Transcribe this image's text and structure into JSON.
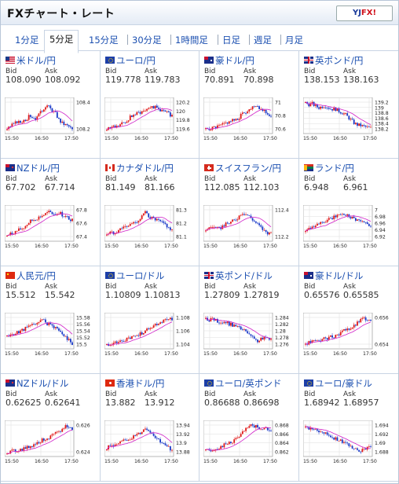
{
  "app": {
    "title": "FXチャート・レート",
    "logo": {
      "part1": "YJ",
      "part2": "FX!"
    }
  },
  "colors": {
    "link": "#1b4fb0",
    "up": "#e01818",
    "down": "#1838c8",
    "ma": "#d020c8",
    "grid": "#dddddd"
  },
  "tabs": [
    {
      "label": "1分足",
      "active": false
    },
    {
      "label": "5分足",
      "active": true
    },
    {
      "label": "15分足",
      "active": false
    },
    {
      "label": "30分足",
      "active": false
    },
    {
      "label": "1時間足",
      "active": false
    },
    {
      "label": "日足",
      "active": false
    },
    {
      "label": "週足",
      "active": false
    },
    {
      "label": "月足",
      "active": false
    }
  ],
  "labels": {
    "bid": "Bid",
    "ask": "Ask"
  },
  "pairs": [
    {
      "name": "米ドル/円",
      "flag": "us",
      "bid": "108.090",
      "ask": "108.092",
      "yticks": [
        "108.4",
        "108.2"
      ],
      "x": [
        "15:50",
        "16:50",
        "17:50"
      ],
      "profile": [
        0.1,
        0.15,
        0.22,
        0.3,
        0.28,
        0.35,
        0.4,
        0.5,
        0.45,
        0.4,
        0.55,
        0.7,
        0.85,
        0.75,
        0.65,
        0.55,
        0.35,
        0.25,
        0.2,
        0.15,
        0.05
      ]
    },
    {
      "name": "ユーロ/円",
      "flag": "eu",
      "bid": "119.778",
      "ask": "119.783",
      "yticks": [
        "120.2",
        "120",
        "119.8",
        "119.6"
      ],
      "x": [
        "15:50",
        "16:50",
        "17:50"
      ],
      "profile": [
        0.1,
        0.12,
        0.15,
        0.14,
        0.2,
        0.25,
        0.3,
        0.45,
        0.5,
        0.55,
        0.6,
        0.65,
        0.7,
        0.8,
        0.78,
        0.75,
        0.7,
        0.65,
        0.6,
        0.55,
        0.5
      ]
    },
    {
      "name": "豪ドル/円",
      "flag": "au",
      "bid": "70.891",
      "ask": "70.898",
      "yticks": [
        "71",
        "70.8",
        "70.6"
      ],
      "x": [
        "15:50",
        "16:50",
        "17:50"
      ],
      "profile": [
        0.05,
        0.08,
        0.1,
        0.12,
        0.15,
        0.2,
        0.25,
        0.3,
        0.35,
        0.32,
        0.4,
        0.55,
        0.6,
        0.65,
        0.75,
        0.85,
        0.8,
        0.7,
        0.65,
        0.55,
        0.45
      ]
    },
    {
      "name": "英ポンド/円",
      "flag": "gb",
      "bid": "138.153",
      "ask": "138.163",
      "yticks": [
        "139.2",
        "139",
        "138.8",
        "138.6",
        "138.4",
        "138.2"
      ],
      "x": [
        "15:50",
        "16:50",
        "17:50"
      ],
      "profile": [
        0.9,
        0.85,
        0.88,
        0.8,
        0.75,
        0.78,
        0.82,
        0.75,
        0.7,
        0.72,
        0.65,
        0.6,
        0.55,
        0.45,
        0.35,
        0.25,
        0.2,
        0.18,
        0.15,
        0.12,
        0.1
      ]
    },
    {
      "name": "NZドル/円",
      "flag": "nz",
      "bid": "67.702",
      "ask": "67.714",
      "yticks": [
        "67.8",
        "67.6",
        "67.4"
      ],
      "x": [
        "15:50",
        "16:50",
        "17:50"
      ],
      "profile": [
        0.1,
        0.15,
        0.2,
        0.25,
        0.3,
        0.35,
        0.45,
        0.55,
        0.6,
        0.65,
        0.7,
        0.75,
        0.8,
        0.85,
        0.8,
        0.78,
        0.85,
        0.75,
        0.7,
        0.65,
        0.6
      ]
    },
    {
      "name": "カナダドル/円",
      "flag": "ca",
      "bid": "81.149",
      "ask": "81.166",
      "yticks": [
        "81.3",
        "81.2",
        "81.1"
      ],
      "x": [
        "15:50",
        "16:50",
        "17:50"
      ],
      "profile": [
        0.15,
        0.2,
        0.18,
        0.25,
        0.3,
        0.4,
        0.35,
        0.45,
        0.5,
        0.55,
        0.6,
        0.75,
        0.85,
        0.7,
        0.65,
        0.6,
        0.55,
        0.5,
        0.45,
        0.35,
        0.25
      ]
    },
    {
      "name": "スイスフラン/円",
      "flag": "ch",
      "bid": "112.085",
      "ask": "112.103",
      "yticks": [
        "112.4",
        "112.2"
      ],
      "x": [
        "15:50",
        "16:50",
        "17:50"
      ],
      "profile": [
        0.3,
        0.35,
        0.4,
        0.35,
        0.3,
        0.4,
        0.45,
        0.5,
        0.55,
        0.6,
        0.7,
        0.85,
        0.8,
        0.75,
        0.65,
        0.55,
        0.45,
        0.35,
        0.25,
        0.2,
        0.15
      ]
    },
    {
      "name": "ランド/円",
      "flag": "za",
      "bid": "6.948",
      "ask": "6.961",
      "yticks": [
        "7",
        "6.98",
        "6.96",
        "6.94",
        "6.92"
      ],
      "x": [
        "15:50",
        "16:50",
        "17:50"
      ],
      "profile": [
        0.3,
        0.35,
        0.4,
        0.45,
        0.5,
        0.48,
        0.55,
        0.6,
        0.65,
        0.7,
        0.75,
        0.8,
        0.78,
        0.75,
        0.7,
        0.65,
        0.6,
        0.55,
        0.5,
        0.48,
        0.45
      ]
    },
    {
      "name": "人民元/円",
      "flag": "cn",
      "bid": "15.512",
      "ask": "15.542",
      "yticks": [
        "15.58",
        "15.56",
        "15.54",
        "15.52",
        "15.5"
      ],
      "x": [
        "15:50",
        "16:50",
        "17:50"
      ],
      "profile": [
        0.3,
        0.4,
        0.35,
        0.45,
        0.5,
        0.55,
        0.6,
        0.65,
        0.7,
        0.75,
        0.8,
        0.85,
        0.75,
        0.7,
        0.65,
        0.6,
        0.5,
        0.4,
        0.3,
        0.2,
        0.1
      ]
    },
    {
      "name": "ユーロ/ドル",
      "flag": "eu",
      "bid": "1.10809",
      "ask": "1.10813",
      "yticks": [
        "1.108",
        "1.106",
        "1.104"
      ],
      "x": [
        "15:50",
        "16:50",
        "17:50"
      ],
      "profile": [
        0.05,
        0.08,
        0.1,
        0.12,
        0.15,
        0.18,
        0.22,
        0.25,
        0.3,
        0.35,
        0.4,
        0.45,
        0.5,
        0.6,
        0.65,
        0.7,
        0.75,
        0.8,
        0.85,
        0.9,
        0.88
      ]
    },
    {
      "name": "英ポンド/ドル",
      "flag": "gb",
      "bid": "1.27809",
      "ask": "1.27819",
      "yticks": [
        "1.284",
        "1.282",
        "1.28",
        "1.278",
        "1.276"
      ],
      "x": [
        "15:50",
        "16:50",
        "17:50"
      ],
      "profile": [
        0.9,
        0.85,
        0.88,
        0.82,
        0.8,
        0.75,
        0.78,
        0.72,
        0.7,
        0.65,
        0.6,
        0.55,
        0.5,
        0.4,
        0.3,
        0.2,
        0.18,
        0.22,
        0.28,
        0.25,
        0.3
      ]
    },
    {
      "name": "豪ドル/ドル",
      "flag": "au",
      "bid": "0.65576",
      "ask": "0.65585",
      "yticks": [
        "0.656",
        "0.654"
      ],
      "x": [
        "15:50",
        "16:50",
        "17:50"
      ],
      "profile": [
        0.1,
        0.12,
        0.15,
        0.18,
        0.2,
        0.22,
        0.25,
        0.28,
        0.3,
        0.35,
        0.4,
        0.45,
        0.5,
        0.55,
        0.6,
        0.65,
        0.75,
        0.85,
        0.9,
        0.88,
        0.85
      ]
    },
    {
      "name": "NZドル/ドル",
      "flag": "nz",
      "bid": "0.62625",
      "ask": "0.62641",
      "yticks": [
        "0.626",
        "0.624"
      ],
      "x": [
        "15:50",
        "16:50",
        "17:50"
      ],
      "profile": [
        0.05,
        0.08,
        0.1,
        0.12,
        0.15,
        0.18,
        0.2,
        0.25,
        0.3,
        0.35,
        0.4,
        0.45,
        0.5,
        0.55,
        0.6,
        0.65,
        0.7,
        0.8,
        0.9,
        0.85,
        0.8
      ]
    },
    {
      "name": "香港ドル/円",
      "flag": "hk",
      "bid": "13.882",
      "ask": "13.912",
      "yticks": [
        "13.94",
        "13.92",
        "13.9",
        "13.88"
      ],
      "x": [
        "15:50",
        "16:50",
        "17:50"
      ],
      "profile": [
        0.2,
        0.25,
        0.3,
        0.28,
        0.35,
        0.4,
        0.45,
        0.5,
        0.55,
        0.6,
        0.65,
        0.75,
        0.85,
        0.75,
        0.65,
        0.55,
        0.45,
        0.35,
        0.25,
        0.2,
        0.15
      ]
    },
    {
      "name": "ユーロ/英ポンド",
      "flag": "eu",
      "bid": "0.86688",
      "ask": "0.86698",
      "yticks": [
        "0.868",
        "0.866",
        "0.864",
        "0.862"
      ],
      "x": [
        "15:50",
        "16:50",
        "17:50"
      ],
      "profile": [
        0.1,
        0.12,
        0.15,
        0.18,
        0.2,
        0.25,
        0.3,
        0.35,
        0.4,
        0.45,
        0.55,
        0.65,
        0.75,
        0.85,
        0.9,
        0.88,
        0.85,
        0.82,
        0.8,
        0.78,
        0.75
      ]
    },
    {
      "name": "ユーロ/豪ドル",
      "flag": "eu",
      "bid": "1.68942",
      "ask": "1.68957",
      "yticks": [
        "1.694",
        "1.692",
        "1.69",
        "1.688"
      ],
      "x": [
        "15:50",
        "16:50",
        "17:50"
      ],
      "profile": [
        0.85,
        0.8,
        0.82,
        0.75,
        0.7,
        0.72,
        0.65,
        0.6,
        0.55,
        0.5,
        0.45,
        0.4,
        0.35,
        0.3,
        0.25,
        0.2,
        0.15,
        0.12,
        0.15,
        0.2,
        0.25
      ]
    }
  ]
}
